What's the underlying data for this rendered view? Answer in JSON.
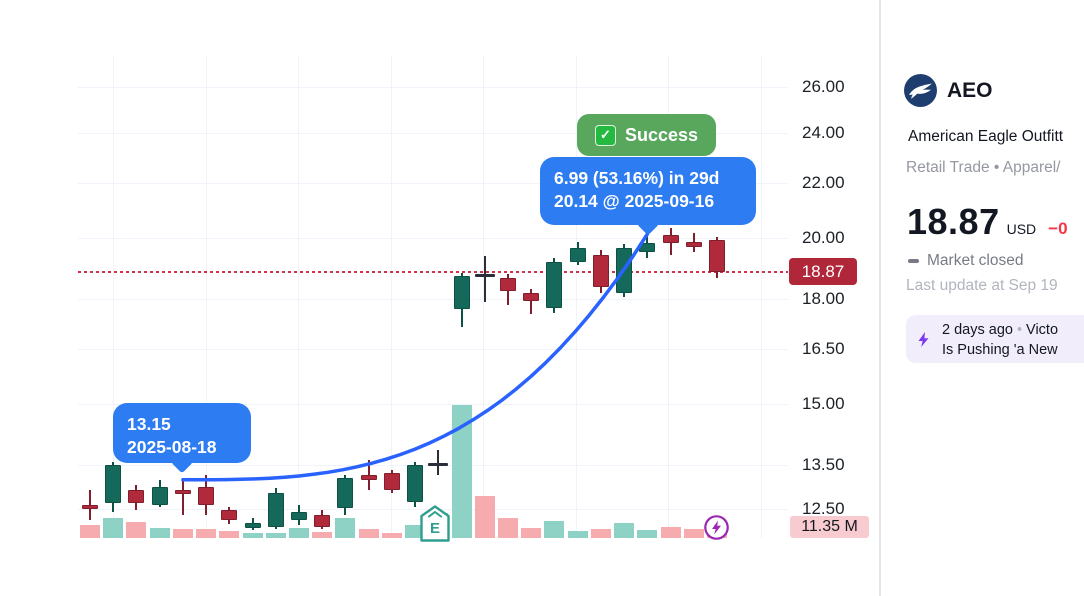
{
  "chart_data": {
    "type": "candlestick",
    "symbol": "AEO",
    "scale": "log",
    "legend_position": "none",
    "grid": true,
    "y_axis": {
      "ticks": [
        {
          "v": 26.0,
          "label": "26.00"
        },
        {
          "v": 24.0,
          "label": "24.00"
        },
        {
          "v": 22.0,
          "label": "22.00"
        },
        {
          "v": 20.0,
          "label": "20.00"
        },
        {
          "v": 18.0,
          "label": "18.00"
        },
        {
          "v": 16.5,
          "label": "16.50"
        },
        {
          "v": 15.0,
          "label": "15.00"
        },
        {
          "v": 13.5,
          "label": "13.50"
        },
        {
          "v": 12.5,
          "label": "12.50"
        }
      ],
      "last_price": 18.87,
      "last_price_label": "18.87",
      "volume_axis_label": "11.35 M",
      "volume_axis_value_m": 11.35
    },
    "candles": [
      {
        "o": 12.59,
        "h": 12.92,
        "l": 12.26,
        "c": 12.51,
        "dir": "d",
        "vol": 16.4,
        "vdir": "d"
      },
      {
        "o": 12.63,
        "h": 13.56,
        "l": 12.44,
        "c": 13.49,
        "dir": "u",
        "vol": 25.2,
        "vdir": "u"
      },
      {
        "o": 12.92,
        "h": 13.03,
        "l": 12.48,
        "c": 12.63,
        "dir": "d",
        "vol": 20.2,
        "vdir": "d"
      },
      {
        "o": 12.59,
        "h": 13.15,
        "l": 12.55,
        "c": 12.98,
        "dir": "u",
        "vol": 12.6,
        "vdir": "u"
      },
      {
        "o": 12.92,
        "h": 13.15,
        "l": 12.37,
        "c": 12.83,
        "dir": "d",
        "vol": 11.3,
        "vdir": "d"
      },
      {
        "o": 12.98,
        "h": 13.26,
        "l": 12.37,
        "c": 12.59,
        "dir": "d",
        "vol": 11.3,
        "vdir": "d"
      },
      {
        "o": 12.48,
        "h": 12.55,
        "l": 12.18,
        "c": 12.26,
        "dir": "d",
        "vol": 8.8,
        "vdir": "d"
      },
      {
        "o": 12.09,
        "h": 12.31,
        "l": 12.05,
        "c": 12.2,
        "dir": "u",
        "vol": 6.3,
        "vdir": "u"
      },
      {
        "o": 12.11,
        "h": 12.96,
        "l": 12.07,
        "c": 12.85,
        "dir": "u",
        "vol": 6.3,
        "vdir": "u"
      },
      {
        "o": 12.26,
        "h": 12.59,
        "l": 12.16,
        "c": 12.44,
        "dir": "u",
        "vol": 12.6,
        "vdir": "u"
      },
      {
        "o": 12.37,
        "h": 12.48,
        "l": 12.07,
        "c": 12.11,
        "dir": "d",
        "vol": 7.6,
        "vdir": "d"
      },
      {
        "o": 12.53,
        "h": 13.26,
        "l": 12.37,
        "c": 13.19,
        "dir": "u",
        "vol": 25.2,
        "vdir": "u"
      },
      {
        "o": 13.26,
        "h": 13.61,
        "l": 12.92,
        "c": 13.15,
        "dir": "d",
        "vol": 11.3,
        "vdir": "d"
      },
      {
        "o": 13.31,
        "h": 13.38,
        "l": 12.85,
        "c": 12.92,
        "dir": "d",
        "vol": 6.3,
        "vdir": "d"
      },
      {
        "o": 12.65,
        "h": 13.56,
        "l": 12.55,
        "c": 13.49,
        "dir": "u",
        "vol": 16.4,
        "vdir": "u"
      },
      {
        "o": 13.55,
        "h": 13.85,
        "l": 13.26,
        "c": 13.52,
        "dir": "n",
        "vol": 31.5,
        "vdir": "u"
      },
      {
        "o": 17.7,
        "h": 18.84,
        "l": 17.13,
        "c": 18.74,
        "dir": "u",
        "vol": 167.6,
        "vdir": "u"
      },
      {
        "o": 18.79,
        "h": 19.4,
        "l": 17.89,
        "c": 18.76,
        "dir": "n",
        "vol": 52.9,
        "vdir": "d"
      },
      {
        "o": 18.68,
        "h": 18.81,
        "l": 17.8,
        "c": 18.26,
        "dir": "d",
        "vol": 25.2,
        "vdir": "d"
      },
      {
        "o": 18.19,
        "h": 18.32,
        "l": 17.54,
        "c": 17.94,
        "dir": "d",
        "vol": 12.6,
        "vdir": "d"
      },
      {
        "o": 17.72,
        "h": 19.32,
        "l": 17.57,
        "c": 19.19,
        "dir": "u",
        "vol": 21.4,
        "vdir": "u"
      },
      {
        "o": 19.19,
        "h": 19.87,
        "l": 19.09,
        "c": 19.66,
        "dir": "u",
        "vol": 8.8,
        "vdir": "u"
      },
      {
        "o": 19.42,
        "h": 19.59,
        "l": 18.2,
        "c": 18.36,
        "dir": "d",
        "vol": 11.3,
        "vdir": "d"
      },
      {
        "o": 18.17,
        "h": 19.8,
        "l": 18.05,
        "c": 19.66,
        "dir": "u",
        "vol": 18.9,
        "vdir": "u"
      },
      {
        "o": 19.53,
        "h": 20.14,
        "l": 19.33,
        "c": 19.83,
        "dir": "u",
        "vol": 10.1,
        "vdir": "u"
      },
      {
        "o": 20.1,
        "h": 20.35,
        "l": 19.42,
        "c": 19.83,
        "dir": "d",
        "vol": 13.9,
        "vdir": "d"
      },
      {
        "o": 19.87,
        "h": 20.17,
        "l": 19.53,
        "c": 19.7,
        "dir": "d",
        "vol": 11.3,
        "vdir": "d"
      },
      {
        "o": 19.93,
        "h": 20.04,
        "l": 18.68,
        "c": 18.87,
        "dir": "d",
        "vol": 11.35,
        "vdir": "d"
      }
    ],
    "trend_line": {
      "from": {
        "price": 13.15,
        "date": "2025-08-18",
        "candle": 5
      },
      "to": {
        "price": 20.14,
        "date": "2025-09-16",
        "candle": 25
      }
    },
    "annotations": {
      "success": {
        "label": "Success",
        "icon": "check"
      },
      "result": {
        "line1": "6.99 (53.16%) in 29d",
        "line2": "20.14 @ 2025-09-16"
      },
      "entry": {
        "line1": "13.15",
        "line2": "2025-08-18"
      },
      "earnings_marker": "E"
    }
  },
  "panel": {
    "symbol": "AEO",
    "company_name": "American Eagle Outfitt",
    "industry": "Retail Trade • Apparel/",
    "price": "18.87",
    "currency": "USD",
    "change": "−0",
    "market_status": "Market closed",
    "last_update": "Last update at Sep 19",
    "news": {
      "age": "2 days ago",
      "dot": "•",
      "headline_start": "Victo",
      "headline_line2": "Is Pushing 'a New"
    }
  },
  "colors": {
    "up": "#15695a",
    "up_border": "#0d5044",
    "down": "#b02a3b",
    "down_border": "#7f1f2d",
    "neutral": "#2a2e39",
    "vol_up": "#8ed2c5",
    "vol_down": "#f6abaf",
    "trend": "#2962ff",
    "last_price_line": "#d43049",
    "last_price_badge": "#b1273a",
    "volume_badge": "#f8cbd0",
    "tooltip_blue": "#2d7cf2",
    "success_green": "#58a75c",
    "news_bg": "#f1edfb",
    "news_accent": "#7c3aed",
    "logo_navy": "#1d3e6e",
    "change_red": "#f23645"
  }
}
